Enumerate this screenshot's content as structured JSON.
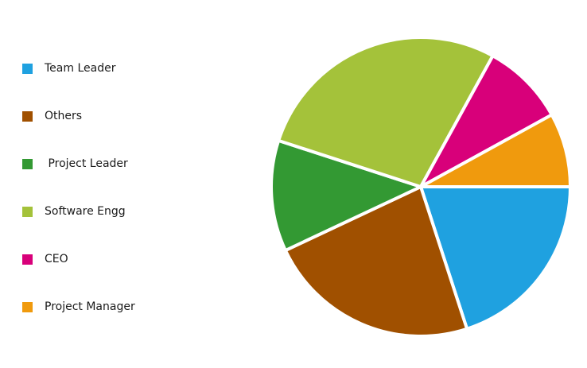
{
  "chart_data": {
    "type": "pie",
    "categories": [
      "Team Leader",
      "Others",
      " Project Leader",
      "Software Engg",
      "CEO",
      "Project Manager"
    ],
    "values": [
      20,
      23,
      12,
      28,
      9,
      8
    ],
    "colors": [
      "#1fa1e0",
      "#a05000",
      "#339933",
      "#a4c23a",
      "#d8007a",
      "#f09a0d"
    ],
    "start_angle_deg": 0,
    "direction": "clockwise",
    "legend": "left"
  }
}
